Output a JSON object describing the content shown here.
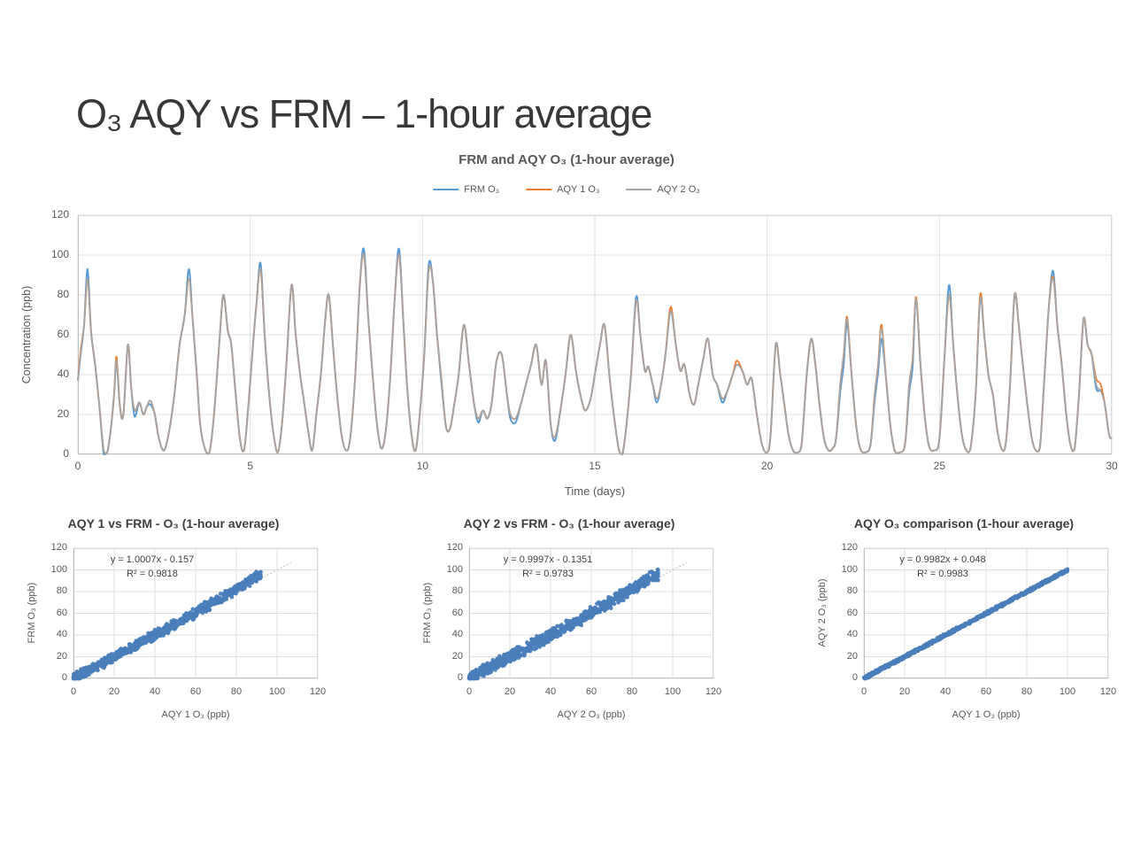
{
  "slide": {
    "title": "O₃ AQY vs FRM – 1-hour average"
  },
  "colors": {
    "frm_blue": "#5B9BD5",
    "aqy1_orange": "#ED7D31",
    "aqy2_gray": "#A6A6A6",
    "scatter_dot_blue": "#4A7EBB",
    "trendline_gray": "#C3C3C3",
    "gridline": "#E0E0E0",
    "axis_line": "#BFBFBF",
    "text_gray": "#595959"
  },
  "chart_data": [
    {
      "type": "line",
      "title": "FRM and AQY O₃ (1-hour average)",
      "xlabel": "Time (days)",
      "ylabel": "Concentration (ppb)",
      "xlim": [
        0,
        30
      ],
      "ylim": [
        0,
        120
      ],
      "xticks": [
        0,
        5,
        10,
        15,
        20,
        25,
        30
      ],
      "yticks": [
        0,
        20,
        40,
        60,
        80,
        100,
        120
      ],
      "grid": true,
      "legend_position": "top",
      "series": [
        {
          "name": "FRM O₃",
          "color": "#5B9BD5"
        },
        {
          "name": "AQY 1 O₃",
          "color": "#ED7D31"
        },
        {
          "name": "AQY 2 O₃",
          "color": "#A6A6A6"
        }
      ],
      "points_aqy2_base": [
        [
          0.0,
          37
        ],
        [
          0.08,
          50
        ],
        [
          0.18,
          65
        ],
        [
          0.28,
          88
        ],
        [
          0.38,
          62
        ],
        [
          0.5,
          45
        ],
        [
          0.62,
          25
        ],
        [
          0.75,
          2
        ],
        [
          0.85,
          1
        ],
        [
          0.95,
          12
        ],
        [
          1.05,
          30
        ],
        [
          1.12,
          47
        ],
        [
          1.22,
          24
        ],
        [
          1.32,
          20
        ],
        [
          1.45,
          55
        ],
        [
          1.55,
          33
        ],
        [
          1.65,
          22
        ],
        [
          1.78,
          26
        ],
        [
          1.9,
          20
        ],
        [
          2.0,
          24
        ],
        [
          2.1,
          27
        ],
        [
          2.22,
          21
        ],
        [
          2.35,
          8
        ],
        [
          2.5,
          2
        ],
        [
          2.65,
          12
        ],
        [
          2.8,
          30
        ],
        [
          2.95,
          55
        ],
        [
          3.1,
          70
        ],
        [
          3.22,
          88
        ],
        [
          3.32,
          70
        ],
        [
          3.45,
          40
        ],
        [
          3.55,
          15
        ],
        [
          3.7,
          2
        ],
        [
          3.82,
          1
        ],
        [
          3.95,
          20
        ],
        [
          4.1,
          55
        ],
        [
          4.22,
          80
        ],
        [
          4.35,
          62
        ],
        [
          4.45,
          55
        ],
        [
          4.58,
          30
        ],
        [
          4.7,
          8
        ],
        [
          4.82,
          2
        ],
        [
          4.95,
          25
        ],
        [
          5.08,
          55
        ],
        [
          5.18,
          75
        ],
        [
          5.3,
          93
        ],
        [
          5.42,
          60
        ],
        [
          5.55,
          30
        ],
        [
          5.68,
          10
        ],
        [
          5.8,
          1
        ],
        [
          5.92,
          15
        ],
        [
          6.05,
          45
        ],
        [
          6.2,
          85
        ],
        [
          6.32,
          60
        ],
        [
          6.45,
          40
        ],
        [
          6.55,
          28
        ],
        [
          6.68,
          12
        ],
        [
          6.8,
          2
        ],
        [
          6.92,
          20
        ],
        [
          7.05,
          40
        ],
        [
          7.18,
          68
        ],
        [
          7.28,
          80
        ],
        [
          7.4,
          55
        ],
        [
          7.52,
          30
        ],
        [
          7.65,
          10
        ],
        [
          7.78,
          2
        ],
        [
          7.9,
          8
        ],
        [
          8.05,
          40
        ],
        [
          8.18,
          85
        ],
        [
          8.3,
          100
        ],
        [
          8.42,
          70
        ],
        [
          8.55,
          40
        ],
        [
          8.68,
          15
        ],
        [
          8.8,
          3
        ],
        [
          8.92,
          10
        ],
        [
          9.05,
          35
        ],
        [
          9.2,
          80
        ],
        [
          9.32,
          100
        ],
        [
          9.45,
          65
        ],
        [
          9.55,
          35
        ],
        [
          9.68,
          10
        ],
        [
          9.8,
          2
        ],
        [
          9.92,
          20
        ],
        [
          10.05,
          50
        ],
        [
          10.18,
          92
        ],
        [
          10.3,
          87
        ],
        [
          10.42,
          60
        ],
        [
          10.55,
          38
        ],
        [
          10.68,
          14
        ],
        [
          10.8,
          13
        ],
        [
          10.92,
          25
        ],
        [
          11.05,
          40
        ],
        [
          11.2,
          65
        ],
        [
          11.35,
          45
        ],
        [
          11.5,
          25
        ],
        [
          11.62,
          18
        ],
        [
          11.75,
          22
        ],
        [
          11.88,
          18
        ],
        [
          12.0,
          25
        ],
        [
          12.15,
          47
        ],
        [
          12.3,
          50
        ],
        [
          12.45,
          30
        ],
        [
          12.55,
          20
        ],
        [
          12.7,
          18
        ],
        [
          12.85,
          25
        ],
        [
          13.0,
          35
        ],
        [
          13.15,
          45
        ],
        [
          13.3,
          55
        ],
        [
          13.45,
          35
        ],
        [
          13.58,
          47
        ],
        [
          13.72,
          15
        ],
        [
          13.85,
          9
        ],
        [
          14.0,
          22
        ],
        [
          14.15,
          40
        ],
        [
          14.3,
          60
        ],
        [
          14.45,
          42
        ],
        [
          14.58,
          30
        ],
        [
          14.72,
          22
        ],
        [
          14.88,
          28
        ],
        [
          15.0,
          40
        ],
        [
          15.15,
          55
        ],
        [
          15.28,
          65
        ],
        [
          15.42,
          40
        ],
        [
          15.55,
          20
        ],
        [
          15.7,
          2
        ],
        [
          15.8,
          0
        ],
        [
          15.92,
          15
        ],
        [
          16.05,
          40
        ],
        [
          16.2,
          77
        ],
        [
          16.32,
          60
        ],
        [
          16.45,
          42
        ],
        [
          16.55,
          44
        ],
        [
          16.68,
          35
        ],
        [
          16.8,
          28
        ],
        [
          16.92,
          35
        ],
        [
          17.05,
          50
        ],
        [
          17.2,
          72
        ],
        [
          17.35,
          55
        ],
        [
          17.48,
          42
        ],
        [
          17.6,
          45
        ],
        [
          17.75,
          30
        ],
        [
          17.88,
          25
        ],
        [
          18.0,
          35
        ],
        [
          18.15,
          48
        ],
        [
          18.28,
          58
        ],
        [
          18.42,
          40
        ],
        [
          18.55,
          35
        ],
        [
          18.7,
          28
        ],
        [
          18.85,
          32
        ],
        [
          19.0,
          40
        ],
        [
          19.12,
          45
        ],
        [
          19.28,
          42
        ],
        [
          19.42,
          35
        ],
        [
          19.55,
          38
        ],
        [
          19.7,
          20
        ],
        [
          19.85,
          5
        ],
        [
          20.0,
          1
        ],
        [
          20.1,
          10
        ],
        [
          20.25,
          55
        ],
        [
          20.38,
          40
        ],
        [
          20.5,
          25
        ],
        [
          20.62,
          10
        ],
        [
          20.75,
          2
        ],
        [
          20.88,
          1
        ],
        [
          21.0,
          5
        ],
        [
          21.15,
          40
        ],
        [
          21.28,
          58
        ],
        [
          21.4,
          45
        ],
        [
          21.52,
          25
        ],
        [
          21.65,
          8
        ],
        [
          21.78,
          2
        ],
        [
          21.9,
          3
        ],
        [
          22.0,
          8
        ],
        [
          22.12,
          35
        ],
        [
          22.22,
          50
        ],
        [
          22.32,
          68
        ],
        [
          22.45,
          40
        ],
        [
          22.58,
          15
        ],
        [
          22.7,
          3
        ],
        [
          22.85,
          1
        ],
        [
          23.0,
          5
        ],
        [
          23.12,
          30
        ],
        [
          23.22,
          45
        ],
        [
          23.32,
          63
        ],
        [
          23.45,
          38
        ],
        [
          23.58,
          14
        ],
        [
          23.7,
          2
        ],
        [
          23.85,
          1
        ],
        [
          24.0,
          5
        ],
        [
          24.12,
          35
        ],
        [
          24.22,
          48
        ],
        [
          24.32,
          78
        ],
        [
          24.45,
          45
        ],
        [
          24.58,
          18
        ],
        [
          24.7,
          4
        ],
        [
          24.85,
          2
        ],
        [
          25.0,
          8
        ],
        [
          25.15,
          50
        ],
        [
          25.28,
          80
        ],
        [
          25.4,
          55
        ],
        [
          25.52,
          30
        ],
        [
          25.65,
          10
        ],
        [
          25.78,
          2
        ],
        [
          25.9,
          3
        ],
        [
          26.05,
          30
        ],
        [
          26.18,
          78
        ],
        [
          26.3,
          60
        ],
        [
          26.42,
          40
        ],
        [
          26.55,
          30
        ],
        [
          26.68,
          12
        ],
        [
          26.8,
          3
        ],
        [
          26.92,
          5
        ],
        [
          27.05,
          35
        ],
        [
          27.18,
          80
        ],
        [
          27.3,
          65
        ],
        [
          27.42,
          45
        ],
        [
          27.55,
          25
        ],
        [
          27.68,
          8
        ],
        [
          27.8,
          2
        ],
        [
          27.92,
          4
        ],
        [
          28.05,
          40
        ],
        [
          28.18,
          75
        ],
        [
          28.3,
          88
        ],
        [
          28.42,
          65
        ],
        [
          28.55,
          45
        ],
        [
          28.68,
          20
        ],
        [
          28.8,
          5
        ],
        [
          28.92,
          3
        ],
        [
          29.05,
          30
        ],
        [
          29.18,
          68
        ],
        [
          29.3,
          55
        ],
        [
          29.42,
          50
        ],
        [
          29.55,
          35
        ],
        [
          29.68,
          32
        ],
        [
          29.8,
          25
        ],
        [
          29.92,
          10
        ],
        [
          30.0,
          8
        ]
      ],
      "frm_overrides": [
        [
          0.28,
          93
        ],
        [
          0.75,
          0
        ],
        [
          1.65,
          19
        ],
        [
          2.1,
          25
        ],
        [
          3.22,
          93
        ],
        [
          5.3,
          96
        ],
        [
          8.3,
          103
        ],
        [
          9.32,
          103
        ],
        [
          10.18,
          95
        ],
        [
          10.55,
          36
        ],
        [
          11.62,
          16
        ],
        [
          12.55,
          18
        ],
        [
          12.7,
          16
        ],
        [
          13.85,
          7
        ],
        [
          16.2,
          79
        ],
        [
          16.8,
          26
        ],
        [
          18.7,
          26
        ],
        [
          22.12,
          31
        ],
        [
          22.22,
          45
        ],
        [
          22.32,
          66
        ],
        [
          23.12,
          27
        ],
        [
          23.22,
          41
        ],
        [
          23.32,
          58
        ],
        [
          24.12,
          31
        ],
        [
          24.22,
          44
        ],
        [
          25.28,
          85
        ],
        [
          28.3,
          92
        ],
        [
          29.55,
          33
        ]
      ],
      "aqy1_overrides": [
        [
          0.08,
          52
        ],
        [
          1.12,
          49
        ],
        [
          17.2,
          74
        ],
        [
          19.12,
          47
        ],
        [
          22.32,
          69
        ],
        [
          23.32,
          65
        ],
        [
          24.32,
          79
        ],
        [
          26.18,
          80
        ],
        [
          28.3,
          89
        ],
        [
          29.55,
          38
        ],
        [
          29.68,
          35
        ]
      ]
    },
    {
      "type": "scatter",
      "title": "AQY 1 vs FRM - O₃ (1-hour average)",
      "xlabel": "AQY 1 O₃ (ppb)",
      "ylabel": "FRM O₃ (ppb)",
      "xlim": [
        0,
        120
      ],
      "ylim": [
        0,
        120
      ],
      "xticks": [
        0,
        20,
        40,
        60,
        80,
        100,
        120
      ],
      "yticks": [
        0,
        20,
        40,
        60,
        80,
        100,
        120
      ],
      "equation": "y = 1.0007x - 0.157",
      "r_squared": "R² = 0.9818",
      "slope": 1.0007,
      "intercept": -0.157,
      "point_color": "#4A7EBB",
      "trendline_dotted": true,
      "trend_to": 107,
      "cloud": {
        "n": 850,
        "x_max": 92,
        "sd": 3.0,
        "seed": 11,
        "bow": 0.1
      }
    },
    {
      "type": "scatter",
      "title": "AQY 2 vs FRM - O₃ (1-hour average)",
      "xlabel": "AQY 2 O₃ (ppb)",
      "ylabel": "FRM O₃ (ppb)",
      "xlim": [
        0,
        120
      ],
      "ylim": [
        0,
        120
      ],
      "xticks": [
        0,
        20,
        40,
        60,
        80,
        100,
        120
      ],
      "yticks": [
        0,
        20,
        40,
        60,
        80,
        100,
        120
      ],
      "equation": "y = 0.9997x - 0.1351",
      "r_squared": "R² = 0.9783",
      "slope": 0.9997,
      "intercept": -0.1351,
      "point_color": "#4A7EBB",
      "trendline_dotted": true,
      "trend_to": 107,
      "cloud": {
        "n": 850,
        "x_max": 93,
        "sd": 3.6,
        "seed": 23,
        "bow": 0.1
      }
    },
    {
      "type": "scatter",
      "title": "AQY O₃ comparison (1-hour average)",
      "xlabel": "AQY 1 O₃ (ppb)",
      "ylabel": "AQY 2 O₃ (ppb)",
      "xlim": [
        0,
        120
      ],
      "ylim": [
        0,
        120
      ],
      "xticks": [
        0,
        20,
        40,
        60,
        80,
        100,
        120
      ],
      "yticks": [
        0,
        20,
        40,
        60,
        80,
        100,
        120
      ],
      "equation": "y = 0.9982x + 0.048",
      "r_squared": "R² = 0.9983",
      "slope": 0.9982,
      "intercept": 0.048,
      "point_color": "#4A7EBB",
      "trendline_dotted": true,
      "trend_to": 102,
      "cloud": {
        "n": 950,
        "x_max": 100,
        "sd": 0.9,
        "seed": 37,
        "bow": 0
      }
    }
  ]
}
